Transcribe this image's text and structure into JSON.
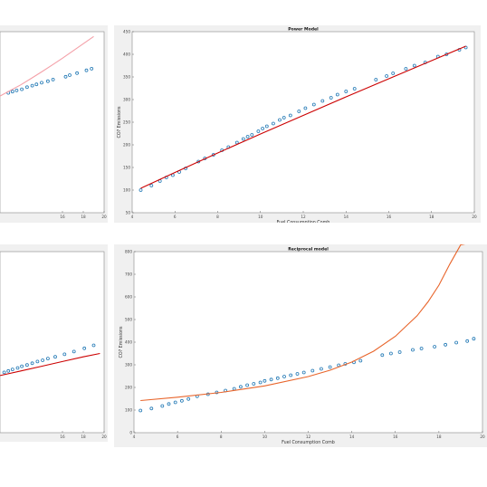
{
  "chart_data": [
    {
      "type": "scatter",
      "title": "",
      "xlabel": "",
      "ylabel": "",
      "xticks": [
        "16",
        "18",
        "20"
      ],
      "xlim": [
        10,
        20
      ],
      "ylim": [
        0,
        450
      ],
      "series": [
        {
          "mode": "markers",
          "color": "#1f77b4",
          "x": [
            10.8,
            11.2,
            11.6,
            12.1,
            12.6,
            13.1,
            13.5,
            14.0,
            14.6,
            15.1,
            16.3,
            16.7,
            17.4,
            18.3,
            18.8
          ],
          "y": [
            298,
            301,
            304,
            307,
            312,
            316,
            319,
            323,
            327,
            331,
            338,
            342,
            347,
            354,
            358
          ]
        },
        {
          "mode": "line",
          "color": "#f4a0a8",
          "x": [
            10.0,
            11.0,
            12.0,
            13.0,
            14.0,
            15.0,
            16.0,
            17.0,
            18.0,
            19.0
          ],
          "y": [
            290,
            304,
            318,
            334,
            350,
            367,
            384,
            402,
            420,
            438
          ]
        }
      ]
    },
    {
      "type": "scatter",
      "title": "Power Model",
      "xlabel": "Fuel Consumption Comb",
      "ylabel": "CO? Emissions",
      "xticks": [
        "4",
        "6",
        "8",
        "10",
        "12",
        "14",
        "16",
        "18",
        "20"
      ],
      "yticks": [
        "50",
        "100",
        "150",
        "200",
        "250",
        "300",
        "350",
        "400",
        "450"
      ],
      "xlim": [
        4,
        20
      ],
      "ylim": [
        50,
        450
      ],
      "series": [
        {
          "mode": "markers",
          "color": "#1f77b4",
          "x": [
            4.4,
            4.9,
            5.3,
            5.6,
            5.9,
            6.2,
            6.5,
            7.1,
            7.4,
            7.8,
            8.2,
            8.5,
            8.9,
            9.2,
            9.4,
            9.6,
            9.9,
            10.1,
            10.3,
            10.6,
            10.9,
            11.1,
            11.4,
            11.8,
            12.1,
            12.5,
            12.9,
            13.3,
            13.6,
            14.0,
            14.4,
            15.4,
            15.9,
            16.2,
            16.8,
            17.2,
            17.7,
            18.3,
            18.7,
            19.3,
            19.6
          ],
          "y": [
            100,
            110,
            120,
            128,
            133,
            140,
            148,
            163,
            170,
            178,
            188,
            195,
            205,
            213,
            218,
            222,
            230,
            236,
            241,
            247,
            255,
            260,
            265,
            274,
            281,
            289,
            297,
            304,
            311,
            318,
            324,
            344,
            352,
            358,
            368,
            375,
            382,
            395,
            400,
            410,
            415
          ]
        },
        {
          "mode": "line",
          "color": "#cc0000",
          "x": [
            4.4,
            6.0,
            8.0,
            10.0,
            12.0,
            14.0,
            16.0,
            18.0,
            19.6
          ],
          "y": [
            104,
            139,
            182,
            224,
            265,
            306,
            346,
            386,
            418
          ]
        }
      ]
    },
    {
      "type": "scatter",
      "title": "",
      "xlabel": "",
      "ylabel": "",
      "xticks": [
        "16",
        "18",
        "20"
      ],
      "xlim": [
        10,
        20
      ],
      "ylim": [
        0,
        850
      ],
      "series": [
        {
          "mode": "markers",
          "color": "#1f77b4",
          "x": [
            10.4,
            10.8,
            11.2,
            11.7,
            12.1,
            12.6,
            13.1,
            13.6,
            14.1,
            14.6,
            15.3,
            16.2,
            17.1,
            18.1,
            19.0
          ],
          "y": [
            283,
            290,
            297,
            304,
            312,
            318,
            326,
            334,
            340,
            348,
            356,
            368,
            381,
            396,
            410
          ]
        },
        {
          "mode": "line",
          "color": "#cc0000",
          "x": [
            10.0,
            12.0,
            14.0,
            16.0,
            18.0,
            19.6
          ],
          "y": [
            268,
            290,
            312,
            334,
            356,
            372
          ]
        }
      ]
    },
    {
      "type": "scatter",
      "title": "Reciprocal model",
      "xlabel": "Fuel Consumption Comb",
      "ylabel": "CO? Emissions",
      "xticks": [
        "4",
        "6",
        "8",
        "10",
        "12",
        "14",
        "16",
        "18",
        "20"
      ],
      "yticks": [
        "0",
        "100",
        "200",
        "300",
        "400",
        "500",
        "600",
        "700",
        "800"
      ],
      "xlim": [
        4,
        20
      ],
      "ylim": [
        0,
        800
      ],
      "series": [
        {
          "mode": "markers",
          "color": "#1f77b4",
          "x": [
            4.3,
            4.8,
            5.3,
            5.6,
            5.9,
            6.2,
            6.5,
            6.9,
            7.4,
            7.8,
            8.2,
            8.6,
            8.9,
            9.2,
            9.5,
            9.8,
            10.0,
            10.3,
            10.6,
            10.9,
            11.2,
            11.5,
            11.8,
            12.2,
            12.6,
            13.0,
            13.4,
            13.7,
            14.1,
            14.4,
            15.4,
            15.8,
            16.2,
            16.8,
            17.2,
            17.8,
            18.3,
            18.8,
            19.3,
            19.6
          ],
          "y": [
            98,
            107,
            118,
            127,
            134,
            141,
            149,
            161,
            170,
            178,
            186,
            194,
            203,
            210,
            216,
            222,
            229,
            235,
            241,
            248,
            254,
            260,
            266,
            274,
            282,
            290,
            298,
            304,
            311,
            318,
            343,
            350,
            356,
            366,
            372,
            380,
            389,
            398,
            405,
            415
          ]
        },
        {
          "mode": "line",
          "color": "#e8642a",
          "x": [
            4.3,
            6.0,
            8.0,
            10.0,
            12.0,
            13.0,
            14.0,
            15.0,
            16.0,
            17.0,
            17.5,
            18.0,
            18.5,
            19.0,
            19.5
          ],
          "y": [
            142,
            157,
            178,
            207,
            248,
            276,
            312,
            360,
            426,
            517,
            578,
            652,
            745,
            830,
            840
          ]
        }
      ]
    }
  ]
}
